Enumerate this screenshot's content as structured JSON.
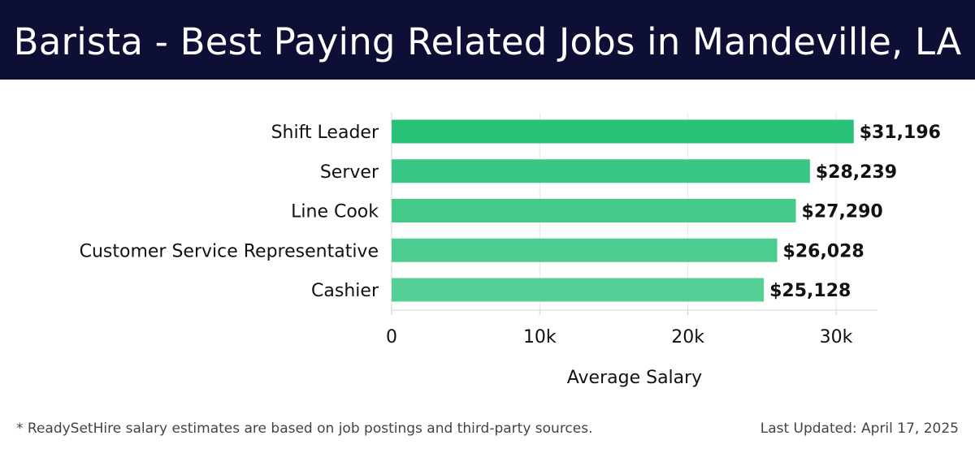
{
  "header": {
    "title": "Barista - Best Paying Related Jobs in Mandeville, LA"
  },
  "chart_data": {
    "type": "bar",
    "orientation": "horizontal",
    "categories": [
      "Shift Leader",
      "Server",
      "Line Cook",
      "Customer Service Representative",
      "Cashier"
    ],
    "values": [
      31196,
      28239,
      27290,
      26028,
      25128
    ],
    "value_labels": [
      "$31,196",
      "$28,239",
      "$27,290",
      "$26,028",
      "$25,128"
    ],
    "xlabel": "Average Salary",
    "ylabel": "",
    "xlim": [
      0,
      32800
    ],
    "x_ticks": [
      0,
      10000,
      20000,
      30000
    ],
    "x_tick_labels": [
      "0",
      "10k",
      "20k",
      "30k"
    ],
    "grid": true,
    "bar_colors": [
      "#27c177",
      "#38c784",
      "#43ca89",
      "#4ccc8f",
      "#55cf95"
    ]
  },
  "footer": {
    "note": "* ReadySetHire salary estimates are based on job postings and third-party sources.",
    "updated": "Last Updated: April 17, 2025"
  }
}
